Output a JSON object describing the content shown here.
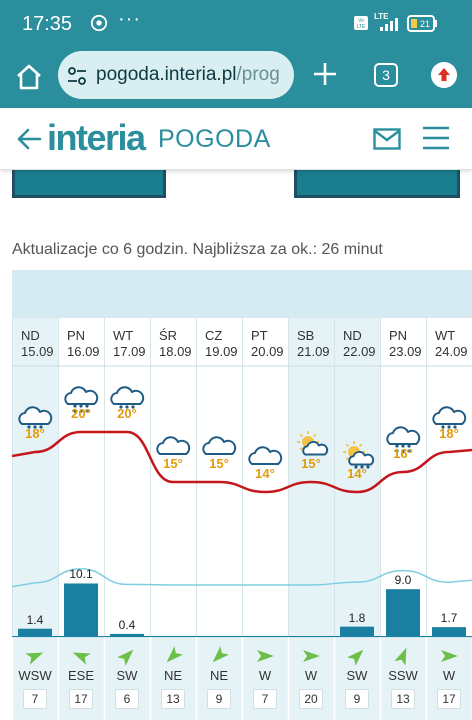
{
  "status_bar": {
    "time": "17:35",
    "more": "···",
    "network": "LTE",
    "battery": "21"
  },
  "browser": {
    "url_host": "pogoda.interia.pl",
    "url_rest": "/prog",
    "tab_count": "3"
  },
  "site": {
    "brand": "interia",
    "section": "POGODA"
  },
  "update_note": "Aktualizacje co 6 godzin. Najbliższa za ok.: 26 minut",
  "forecast": {
    "days": [
      {
        "name": "ND",
        "date": "15.09",
        "temp": "18°",
        "precip": "1.4",
        "wind_dir": "WSW",
        "wind_speed": "7",
        "icon": "cloud-rain-icon",
        "highlight": true
      },
      {
        "name": "PN",
        "date": "16.09",
        "temp": "20°",
        "precip": "10.1",
        "wind_dir": "ESE",
        "wind_speed": "17",
        "icon": "cloud-heavy-rain-icon",
        "highlight": false
      },
      {
        "name": "WT",
        "date": "17.09",
        "temp": "20°",
        "precip": "0.4",
        "wind_dir": "SW",
        "wind_speed": "6",
        "icon": "cloud-rain-icon",
        "highlight": false
      },
      {
        "name": "ŚR",
        "date": "18.09",
        "temp": "15°",
        "precip": "",
        "wind_dir": "NE",
        "wind_speed": "13",
        "icon": "cloud-icon",
        "highlight": false
      },
      {
        "name": "CZ",
        "date": "19.09",
        "temp": "15°",
        "precip": "",
        "wind_dir": "NE",
        "wind_speed": "9",
        "icon": "cloud-icon",
        "highlight": false
      },
      {
        "name": "PT",
        "date": "20.09",
        "temp": "14°",
        "precip": "",
        "wind_dir": "W",
        "wind_speed": "7",
        "icon": "cloud-icon",
        "highlight": false
      },
      {
        "name": "SB",
        "date": "21.09",
        "temp": "15°",
        "precip": "",
        "wind_dir": "W",
        "wind_speed": "20",
        "icon": "sun-cloud-icon",
        "highlight": true
      },
      {
        "name": "ND",
        "date": "22.09",
        "temp": "14°",
        "precip": "1.8",
        "wind_dir": "SW",
        "wind_speed": "9",
        "icon": "sun-cloud-rain-icon",
        "highlight": true
      },
      {
        "name": "PN",
        "date": "23.09",
        "temp": "16°",
        "precip": "9.0",
        "wind_dir": "SSW",
        "wind_speed": "13",
        "icon": "cloud-heavy-rain-icon",
        "highlight": false
      },
      {
        "name": "WT",
        "date": "24.09",
        "temp": "18°",
        "precip": "1.7",
        "wind_dir": "W",
        "wind_speed": "17",
        "icon": "cloud-rain-icon",
        "highlight": false
      }
    ]
  },
  "chart_data": {
    "type": "line",
    "categories": [
      "15.09",
      "16.09",
      "17.09",
      "18.09",
      "19.09",
      "20.09",
      "21.09",
      "22.09",
      "23.09",
      "24.09"
    ],
    "series": [
      {
        "values": [
          18,
          20,
          20,
          15,
          15,
          14,
          15,
          14,
          16,
          18
        ],
        "color": "#c4161c",
        "kind": "line"
      },
      {
        "values": [
          1.4,
          10.1,
          0.4,
          0,
          0,
          0,
          0,
          1.8,
          9.0,
          1.7
        ],
        "color": "#1a7fa0",
        "kind": "bar"
      }
    ],
    "wind_dir_arrows": [
      "WSW",
      "ESE",
      "SW",
      "NE",
      "NE",
      "W",
      "W",
      "SW",
      "SSW",
      "W"
    ]
  },
  "colors": {
    "brand": "#2a8e9c",
    "temp_line": "#c4161c",
    "precip_bar": "#1a7fa0",
    "temp_text": "#e29b0b",
    "wind_arrow": "#6cc04a"
  }
}
